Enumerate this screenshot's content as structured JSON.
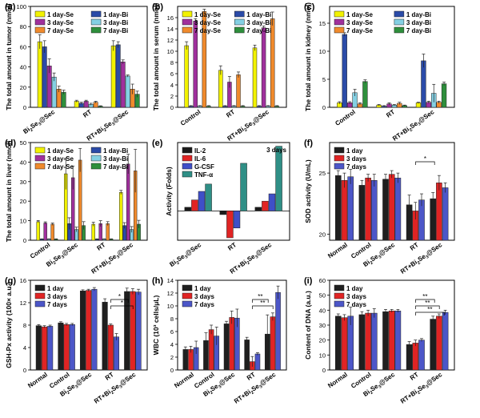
{
  "figure": {
    "title": ""
  },
  "chart_data": [
    {
      "id": "a",
      "panel_label": "(a)",
      "type": "bar",
      "ylabel": "The total amount in tumor (nmol)",
      "ylim": [
        0,
        100
      ],
      "yticks": [
        0,
        20,
        40,
        60,
        80,
        100
      ],
      "categories": [
        "Bi2Se3@Sec",
        "RT",
        "RT+Bi2Se3@Sec"
      ],
      "category_labels": [
        [
          "Bi",
          "2",
          "Se",
          "3",
          "@Sec"
        ],
        [
          "RT"
        ],
        [
          "RT+Bi",
          "2",
          "Se",
          "3",
          "@Sec"
        ]
      ],
      "legend_cols": 2,
      "series": [
        {
          "name": "1 day-Se",
          "color": "#f2f200",
          "values": [
            65,
            6,
            61
          ],
          "errors": [
            7,
            1,
            5
          ]
        },
        {
          "name": "1 day-Bi",
          "color": "#2b4ba8",
          "values": [
            60,
            4,
            62
          ],
          "errors": [
            6,
            1,
            3
          ]
        },
        {
          "name": "3 day-Se",
          "color": "#a0309c",
          "values": [
            41,
            6,
            45
          ],
          "errors": [
            7,
            1,
            2
          ]
        },
        {
          "name": "3 day-Bi",
          "color": "#84d0e3",
          "values": [
            30,
            3,
            31
          ],
          "errors": [
            4,
            1,
            1
          ]
        },
        {
          "name": "7 day-Se",
          "color": "#f08a2c",
          "values": [
            18,
            5,
            18
          ],
          "errors": [
            3,
            1,
            5
          ]
        },
        {
          "name": "7 day-Bi",
          "color": "#2e8f3c",
          "values": [
            15,
            1,
            13
          ],
          "errors": [
            2,
            0.5,
            3
          ]
        }
      ]
    },
    {
      "id": "b",
      "panel_label": "(b)",
      "type": "bar",
      "ylabel": "The total amount in serum (nmol)",
      "ylim": [
        0,
        18
      ],
      "yticks": [
        0,
        2,
        4,
        6,
        8,
        10,
        12,
        14,
        16
      ],
      "categories": [
        "Control",
        "RT",
        "RT+Bi2Se3@Sec"
      ],
      "category_labels": [
        [
          "Control"
        ],
        [
          "RT"
        ],
        [
          "RT+Bi",
          "2",
          "Se",
          "3",
          "@Sec"
        ]
      ],
      "legend_cols": 2,
      "series": [
        {
          "name": "1 day-Se",
          "color": "#f2f200",
          "values": [
            5.6,
            6.6,
            10.6
          ],
          "errors": [
            0.6,
            0.8,
            0.5
          ]
        },
        {
          "name": "1 day-Bi",
          "color": "#2b4ba8",
          "values": [
            0.2,
            0.2,
            0.2
          ],
          "errors": [
            0.1,
            0.1,
            0.1
          ]
        },
        {
          "name": "3 day-Se",
          "color": "#a0309c",
          "values": [
            4.8,
            4.5,
            14.2
          ],
          "errors": [
            1.0,
            1.0,
            0.3
          ]
        },
        {
          "name": "3 day-Bi",
          "color": "#84d0e3",
          "values": [
            0.2,
            0.2,
            0.2
          ],
          "errors": [
            0.1,
            0.1,
            0.1
          ]
        },
        {
          "name": "7 day-Se",
          "color": "#f08a2c",
          "values": [
            5.0,
            5.8,
            15.8
          ],
          "errors": [
            0.5,
            0.5,
            1.2
          ]
        },
        {
          "name": "7 day-Bi",
          "color": "#2e8f3c",
          "values": [
            0.2,
            0.2,
            0.2
          ],
          "errors": [
            0.1,
            0.1,
            0.1
          ]
        }
      ],
      "extra_bars": [
        {
          "category_index": 0,
          "color": "#f2f200",
          "value": 11.0,
          "error": 0.7
        },
        {
          "category_index": 0,
          "color": "#a0309c",
          "value": 15.4,
          "error": 0.4
        },
        {
          "category_index": 0,
          "color": "#f08a2c",
          "value": 17.1,
          "error": 0.4
        }
      ]
    },
    {
      "id": "c",
      "panel_label": "(c)",
      "type": "bar",
      "ylabel": "The total amount in kidney (nmol)",
      "ylim": [
        0,
        18
      ],
      "yticks": [
        0,
        5,
        10,
        15
      ],
      "categories": [
        "Control",
        "RT",
        "RT+Bi2Se3@Sec"
      ],
      "category_labels": [
        [
          "Control"
        ],
        [
          "RT"
        ],
        [
          "RT+Bi",
          "2",
          "Se",
          "3",
          "@Sec"
        ]
      ],
      "legend_cols": 2,
      "series": [
        {
          "name": "1 day-Se",
          "color": "#f2f200",
          "values": [
            0.6,
            0.4,
            0.8
          ],
          "errors": [
            0.2,
            0.1,
            0.1
          ]
        },
        {
          "name": "1 day-Bi",
          "color": "#2b4ba8",
          "values": [
            0.5,
            0.2,
            8.3
          ],
          "errors": [
            0.2,
            0.1,
            1.2
          ]
        },
        {
          "name": "3 day-Se",
          "color": "#a0309c",
          "values": [
            0.8,
            0.6,
            0.9
          ],
          "errors": [
            0.2,
            0.2,
            0.2
          ]
        },
        {
          "name": "3 day-Bi",
          "color": "#84d0e3",
          "values": [
            0.4,
            0.4,
            2.5
          ],
          "errors": [
            0.1,
            0.1,
            1.6
          ]
        },
        {
          "name": "7 day-Se",
          "color": "#f08a2c",
          "values": [
            0.6,
            0.7,
            0.9
          ],
          "errors": [
            0.2,
            0.2,
            0.2
          ]
        },
        {
          "name": "7 day-Bi",
          "color": "#2e8f3c",
          "values": [
            0.4,
            0.3,
            4.2
          ],
          "errors": [
            0.1,
            0.1,
            0.3
          ]
        }
      ],
      "extra_bars": [
        {
          "category_index": 0,
          "color": "#f2f200",
          "value": 0.8,
          "error": 0.2
        },
        {
          "category_index": 0,
          "color": "#2b4ba8",
          "value": 13.0,
          "error": 0.3
        },
        {
          "category_index": 0,
          "color": "#84d0e3",
          "value": 2.6,
          "error": 0.6
        },
        {
          "category_index": 0,
          "color": "#2e8f3c",
          "value": 4.6,
          "error": 0.3
        }
      ]
    },
    {
      "id": "d",
      "panel_label": "(d)",
      "type": "bar",
      "ylabel": "The total amount in liver (nmol)",
      "ylim": [
        0,
        50
      ],
      "yticks": [
        0,
        10,
        20,
        30,
        40,
        50
      ],
      "categories": [
        "Control",
        "Bi2Se3@Sec",
        "RT",
        "RT+Bi2Se3@Sec"
      ],
      "category_labels": [
        [
          "Control"
        ],
        [
          "Bi",
          "2",
          "Se",
          "3",
          "@Sec"
        ],
        [
          "RT"
        ],
        [
          "RT+Bi",
          "2",
          "Se",
          "3",
          "@Sec"
        ]
      ],
      "legend_cols": 2,
      "series": [
        {
          "name": "1 day-Se",
          "color": "#f2f200",
          "values": [
            9.5,
            34,
            8.2,
            24.5
          ],
          "errors": [
            0.6,
            8,
            1,
            1
          ]
        },
        {
          "name": "1 day-Bi",
          "color": "#2b4ba8",
          "values": [
            0.5,
            8.5,
            0.5,
            7.5
          ],
          "errors": [
            0.2,
            3,
            0.2,
            1.5
          ]
        },
        {
          "name": "3 day-Se",
          "color": "#a0309c",
          "values": [
            8.8,
            32,
            8.5,
            39
          ],
          "errors": [
            0.6,
            6,
            1.5,
            5
          ]
        },
        {
          "name": "3 day-Bi",
          "color": "#84d0e3",
          "values": [
            0.5,
            5.5,
            0.5,
            5.5
          ],
          "errors": [
            0.2,
            1.2,
            0.2,
            1.5
          ]
        },
        {
          "name": "7 day-Se",
          "color": "#f08a2c",
          "values": [
            8.2,
            41,
            8.5,
            35.5
          ],
          "errors": [
            0.6,
            6,
            1,
            11
          ]
        },
        {
          "name": "7 day-Bi",
          "color": "#2e8f3c",
          "values": [
            0.5,
            7.5,
            0.5,
            8.2
          ],
          "errors": [
            0.2,
            2,
            0.2,
            2
          ]
        }
      ]
    },
    {
      "id": "e",
      "panel_label": "(e)",
      "type": "bar",
      "ylabel": "Activity (Folds)",
      "ylim": [
        -12,
        28
      ],
      "yticks": [],
      "annotation": "3 days",
      "categories": [
        "Bi2Se3@Sec",
        "RT",
        "RT+Bi2Se3@Sec"
      ],
      "category_labels": [
        [
          "Bi",
          "2",
          "Se",
          "3",
          "@Sec"
        ],
        [
          "RT"
        ],
        [
          "RT+Bi",
          "2",
          "Se",
          "3",
          "@Sec"
        ]
      ],
      "legend_cols": 1,
      "series": [
        {
          "name": "IL-2",
          "color": "#1a1a1a",
          "values": [
            1.5,
            -1.5,
            1.5
          ]
        },
        {
          "name": "IL-6",
          "color": "#e02424",
          "values": [
            4.5,
            -11,
            4
          ]
        },
        {
          "name": "G-CSF",
          "color": "#3f4fc8",
          "values": [
            8,
            -7,
            7
          ]
        },
        {
          "name": "TNF-α",
          "color": "#2f8f86",
          "values": [
            11,
            19.5,
            26.5
          ]
        }
      ]
    },
    {
      "id": "f",
      "panel_label": "(f)",
      "type": "bar",
      "ylabel": "SOD activity (U/mL)",
      "ylim": [
        19.5,
        27.5
      ],
      "yticks": [
        20,
        25
      ],
      "axis_break": 19.9,
      "categories": [
        "Normal",
        "Control",
        "Bi2Se3@Sec",
        "RT",
        "RT+Bi2Se3@Sec"
      ],
      "category_labels": [
        [
          "Normal"
        ],
        [
          "Control"
        ],
        [
          "Bi",
          "2",
          "Se",
          "3",
          "@Sec"
        ],
        [
          "RT"
        ],
        [
          "RT+Bi",
          "2",
          "Se",
          "3",
          "@Sec"
        ]
      ],
      "legend_cols": 1,
      "series": [
        {
          "name": "1 day",
          "color": "#1f1f1f",
          "values": [
            24.8,
            24.0,
            24.5,
            22.4,
            22.9
          ],
          "errors": [
            0.4,
            0.4,
            0.4,
            0.8,
            0.5
          ]
        },
        {
          "name": "3 days",
          "color": "#e02424",
          "values": [
            24.4,
            24.6,
            24.9,
            21.9,
            24.2
          ],
          "errors": [
            0.6,
            0.3,
            0.3,
            0.7,
            0.6
          ]
        },
        {
          "name": "7 days",
          "color": "#4c56c8",
          "values": [
            24.7,
            24.4,
            24.6,
            22.8,
            23.8
          ],
          "errors": [
            0.6,
            0.5,
            0.4,
            0.5,
            0.4
          ]
        }
      ],
      "significance": [
        {
          "from": 3,
          "to": 4,
          "label": "*"
        }
      ]
    },
    {
      "id": "g",
      "panel_label": "(g)",
      "type": "bar",
      "ylabel": "GSH-Px activity (100× a.u.)",
      "ylim": [
        0,
        16
      ],
      "yticks": [
        0,
        4,
        8,
        12,
        16
      ],
      "categories": [
        "Normal",
        "Control",
        "Bi2Se3@Sec",
        "RT",
        "RT+Bi2Se3@Sec"
      ],
      "category_labels": [
        [
          "Normal"
        ],
        [
          "Control"
        ],
        [
          "Bi",
          "2",
          "Se",
          "3",
          "@Sec"
        ],
        [
          "RT"
        ],
        [
          "RT+Bi",
          "2",
          "Se",
          "3",
          "@Sec"
        ]
      ],
      "legend_cols": 1,
      "series": [
        {
          "name": "1 day",
          "color": "#1f1f1f",
          "values": [
            7.9,
            8.4,
            14.1,
            12.1,
            14.0
          ],
          "errors": [
            0.2,
            0.2,
            0.2,
            0.6,
            0.6
          ]
        },
        {
          "name": "3 days",
          "color": "#e02424",
          "values": [
            7.7,
            8.1,
            14.2,
            8.0,
            14.0
          ],
          "errors": [
            0.2,
            0.2,
            0.2,
            0.2,
            0.5
          ]
        },
        {
          "name": "7 days",
          "color": "#4c56c8",
          "values": [
            7.8,
            8.1,
            14.4,
            5.9,
            13.9
          ],
          "errors": [
            0.2,
            0.2,
            0.3,
            0.6,
            0.5
          ]
        }
      ],
      "significance": [
        {
          "from": 3,
          "to": 4,
          "label": "*"
        },
        {
          "from": 3,
          "to": 4,
          "label": "*"
        }
      ]
    },
    {
      "id": "h",
      "panel_label": "(h)",
      "type": "bar",
      "ylabel": "WBC (10³ cells/μL)",
      "ylim": [
        0,
        14
      ],
      "yticks": [
        0,
        2,
        4,
        6,
        8,
        10,
        12,
        14
      ],
      "categories": [
        "Normal",
        "Control",
        "Bi2Se3@Sec",
        "RT",
        "RT+Bi2Se3@Sec"
      ],
      "category_labels": [
        [
          "Normal"
        ],
        [
          "Control"
        ],
        [
          "Bi",
          "2",
          "Se",
          "3",
          "@Sec"
        ],
        [
          "RT"
        ],
        [
          "RT+Bi",
          "2",
          "Se",
          "3",
          "@Sec"
        ]
      ],
      "legend_cols": 1,
      "series": [
        {
          "name": "1 day",
          "color": "#1f1f1f",
          "values": [
            3.2,
            4.6,
            7.2,
            4.7,
            5.6
          ],
          "errors": [
            0.4,
            1.2,
            0.4,
            0.4,
            3.0
          ]
        },
        {
          "name": "3 days",
          "color": "#e02424",
          "values": [
            3.2,
            6.3,
            8.2,
            1.3,
            8.3
          ],
          "errors": [
            0.5,
            0.7,
            1.0,
            0.8,
            0.6
          ]
        },
        {
          "name": "7 days",
          "color": "#4c56c8",
          "values": [
            3.5,
            5.3,
            8.1,
            2.5,
            12.1
          ],
          "errors": [
            1.0,
            1.4,
            1.4,
            0.2,
            1.0
          ]
        }
      ],
      "significance": [
        {
          "from": 3,
          "to": 4,
          "label": "**"
        },
        {
          "from": 3,
          "to": 4,
          "label": "**"
        }
      ]
    },
    {
      "id": "i",
      "panel_label": "(i)",
      "type": "bar",
      "ylabel": "Content of DNA (a.u.)",
      "ylim": [
        0,
        60
      ],
      "yticks": [
        0,
        10,
        20,
        30,
        40,
        50,
        60
      ],
      "categories": [
        "Normal",
        "Control",
        "Bi2Se3@Sec",
        "RT",
        "RT+Bi2Se3@Sec"
      ],
      "category_labels": [
        [
          "Normal"
        ],
        [
          "Control"
        ],
        [
          "Bi",
          "2",
          "Se",
          "3",
          "@Sec"
        ],
        [
          "RT"
        ],
        [
          "RT+Bi",
          "2",
          "Se",
          "3",
          "@Sec"
        ]
      ],
      "legend_cols": 1,
      "series": [
        {
          "name": "1 day",
          "color": "#1f1f1f",
          "values": [
            36,
            37,
            39,
            17,
            34
          ],
          "errors": [
            1.5,
            2,
            1.5,
            2,
            2
          ]
        },
        {
          "name": "3 days",
          "color": "#e02424",
          "values": [
            35,
            38,
            39.5,
            18,
            36
          ],
          "errors": [
            2,
            2,
            1,
            2,
            1.5
          ]
        },
        {
          "name": "7 days",
          "color": "#4c56c8",
          "values": [
            36,
            38,
            39.5,
            20,
            38.5
          ],
          "errors": [
            6,
            3,
            1,
            1,
            1.5
          ]
        }
      ],
      "significance": [
        {
          "from": 3,
          "to": 4,
          "label": "**"
        },
        {
          "from": 3,
          "to": 4,
          "label": "**"
        },
        {
          "from": 3,
          "to": 4,
          "label": "**"
        }
      ]
    }
  ]
}
